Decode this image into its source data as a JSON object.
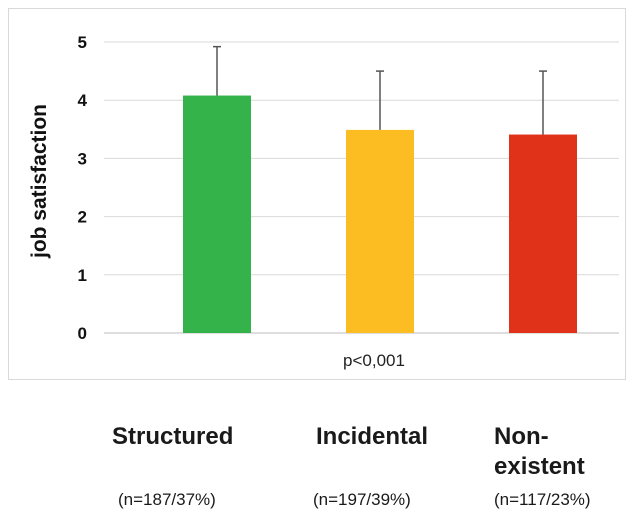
{
  "chart_data": {
    "type": "bar",
    "categories": [
      "Structured",
      "Incidental",
      "Non-existent"
    ],
    "category_display": [
      "Structured",
      "Incidental",
      "Non-\nexistent"
    ],
    "category_counts": [
      "(n=187/37%)",
      "(n=197/39%)",
      "(n=117/23%)"
    ],
    "values": [
      4.08,
      3.49,
      3.41
    ],
    "error_upper": [
      4.92,
      4.5,
      4.5
    ],
    "colors": [
      "#34b34a",
      "#fbbd22",
      "#df3218"
    ],
    "ylabel": "job satisfaction",
    "ylim": [
      0,
      5
    ],
    "yticks": [
      "0",
      "1",
      "2",
      "3",
      "4",
      "5"
    ],
    "annotation": "p<0,001",
    "grid": true,
    "legend": "none"
  }
}
